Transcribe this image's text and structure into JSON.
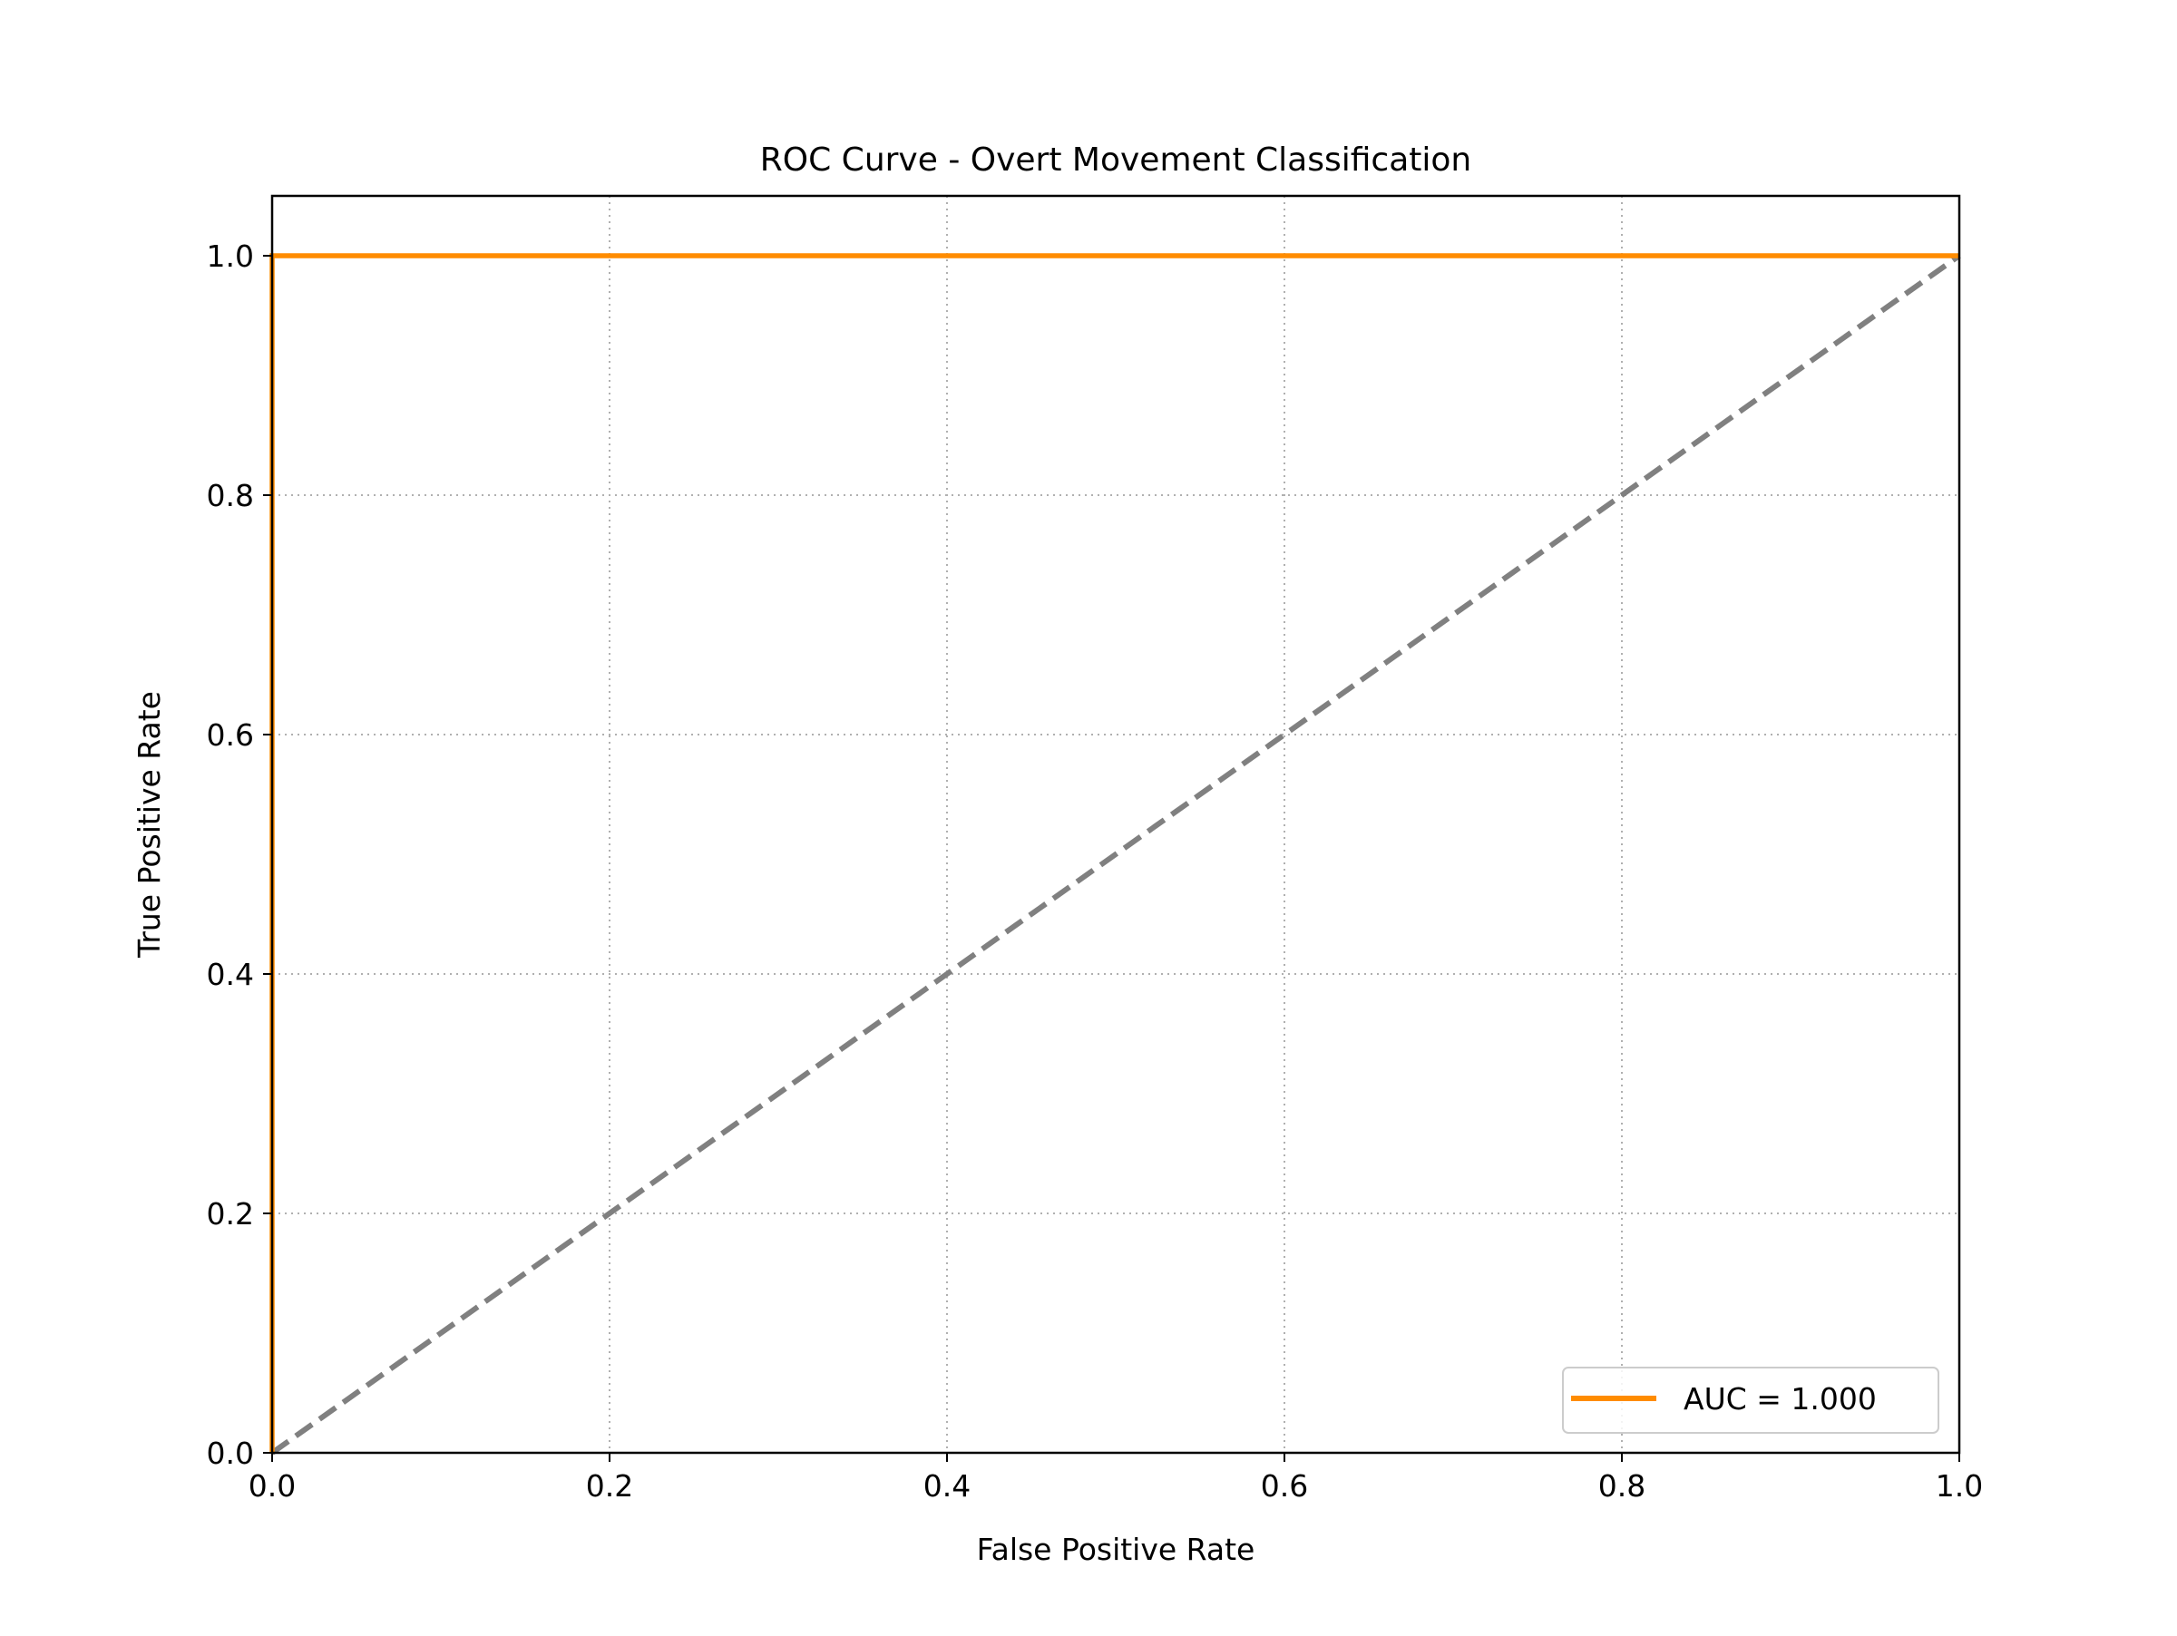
{
  "chart_data": {
    "type": "line",
    "title": "ROC Curve - Overt Movement Classification",
    "xlabel": "False Positive Rate",
    "ylabel": "True Positive Rate",
    "xlim": [
      0.0,
      1.0
    ],
    "ylim": [
      0.0,
      1.05
    ],
    "xticks": [
      "0.0",
      "0.2",
      "0.4",
      "0.6",
      "0.8",
      "1.0"
    ],
    "yticks": [
      "0.0",
      "0.2",
      "0.4",
      "0.6",
      "0.8",
      "1.0"
    ],
    "grid": true,
    "legend_position": "bottom-right",
    "series": [
      {
        "name": "AUC = 1.000",
        "color": "#ff8c00",
        "style": "solid",
        "x": [
          0.0,
          0.0,
          1.0
        ],
        "y": [
          0.0,
          1.0,
          1.0
        ]
      },
      {
        "color": "#808080",
        "style": "dashed",
        "x": [
          0.0,
          1.0
        ],
        "y": [
          0.0,
          1.0
        ]
      }
    ]
  }
}
